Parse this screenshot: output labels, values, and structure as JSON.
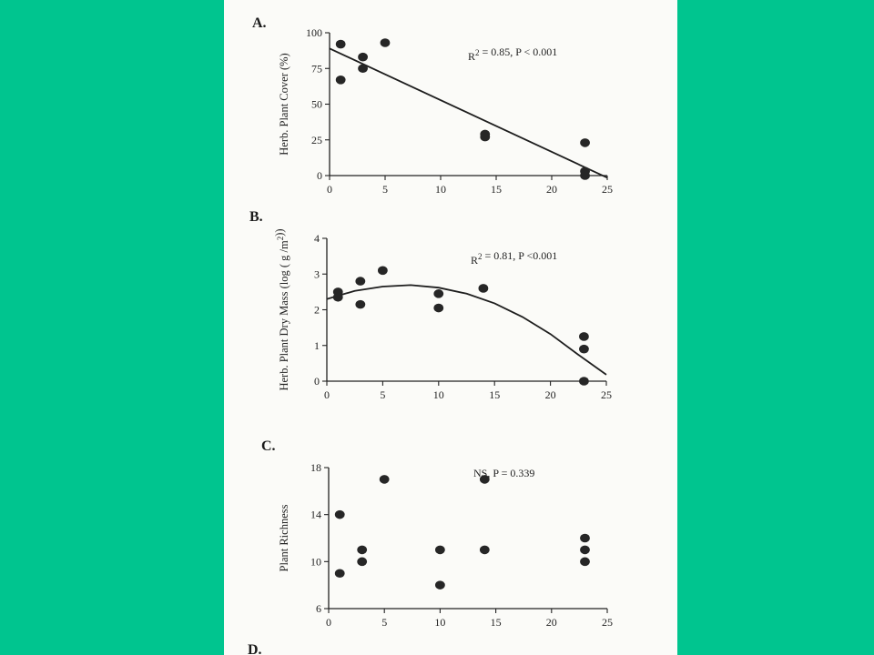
{
  "slide": {
    "background_color": "#00c58f",
    "paper_color": "#fbfbf8",
    "trailing_panel_label": "D."
  },
  "chart_data": [
    {
      "type": "scatter",
      "panel_label": "A.",
      "title": "",
      "xlabel": "",
      "ylabel": "Herb. Plant Cover (%)",
      "xlim": [
        0,
        25
      ],
      "ylim": [
        0,
        100
      ],
      "xticks": [
        0,
        5,
        10,
        15,
        20,
        25
      ],
      "yticks": [
        0,
        25,
        50,
        75,
        100
      ],
      "grid": false,
      "annotation": "R² = 0.85, P < 0.001",
      "points": [
        {
          "x": 1,
          "y": 92
        },
        {
          "x": 1,
          "y": 67
        },
        {
          "x": 3,
          "y": 83
        },
        {
          "x": 3,
          "y": 75
        },
        {
          "x": 5,
          "y": 93
        },
        {
          "x": 14,
          "y": 29
        },
        {
          "x": 14,
          "y": 27
        },
        {
          "x": 23,
          "y": 23
        },
        {
          "x": 23,
          "y": 3
        },
        {
          "x": 23,
          "y": 0
        }
      ],
      "fit": {
        "kind": "linear",
        "x": [
          0,
          25
        ],
        "y": [
          89,
          -1.5
        ]
      }
    },
    {
      "type": "scatter",
      "panel_label": "B.",
      "title": "",
      "xlabel": "",
      "ylabel": "Herb. Plant Dry Mass (log ( g /m²))",
      "xlim": [
        0,
        25
      ],
      "ylim": [
        0,
        4
      ],
      "xticks": [
        0,
        5,
        10,
        15,
        20,
        25
      ],
      "yticks": [
        0,
        1,
        2,
        3,
        4
      ],
      "grid": false,
      "annotation": "R² = 0.81, P <0.001",
      "points": [
        {
          "x": 1,
          "y": 2.5
        },
        {
          "x": 1,
          "y": 2.35
        },
        {
          "x": 3,
          "y": 2.8
        },
        {
          "x": 3,
          "y": 2.15
        },
        {
          "x": 5,
          "y": 3.1
        },
        {
          "x": 10,
          "y": 2.45
        },
        {
          "x": 10,
          "y": 2.05
        },
        {
          "x": 14,
          "y": 2.6
        },
        {
          "x": 23,
          "y": 1.25
        },
        {
          "x": 23,
          "y": 0.9
        },
        {
          "x": 23,
          "y": 0
        }
      ],
      "fit": {
        "kind": "quadratic",
        "x": [
          0,
          2.5,
          5,
          7.5,
          10,
          12.5,
          15,
          17.5,
          20,
          22.5,
          25
        ],
        "y": [
          2.3,
          2.53,
          2.65,
          2.69,
          2.62,
          2.45,
          2.18,
          1.8,
          1.32,
          0.74,
          0.18
        ]
      }
    },
    {
      "type": "scatter",
      "panel_label": "C.",
      "title": "",
      "xlabel": "",
      "ylabel": "Plant Richness",
      "xlim": [
        0,
        25
      ],
      "ylim": [
        6,
        18
      ],
      "xticks": [
        0,
        5,
        10,
        15,
        20,
        25
      ],
      "yticks": [
        6,
        10,
        14,
        18
      ],
      "grid": false,
      "annotation": "NS, P = 0.339",
      "points": [
        {
          "x": 1,
          "y": 14
        },
        {
          "x": 1,
          "y": 9
        },
        {
          "x": 3,
          "y": 11
        },
        {
          "x": 3,
          "y": 10
        },
        {
          "x": 5,
          "y": 17
        },
        {
          "x": 10,
          "y": 11
        },
        {
          "x": 10,
          "y": 8
        },
        {
          "x": 14,
          "y": 17
        },
        {
          "x": 14,
          "y": 11
        },
        {
          "x": 23,
          "y": 12
        },
        {
          "x": 23,
          "y": 11
        },
        {
          "x": 23,
          "y": 10
        }
      ],
      "fit": null
    }
  ]
}
